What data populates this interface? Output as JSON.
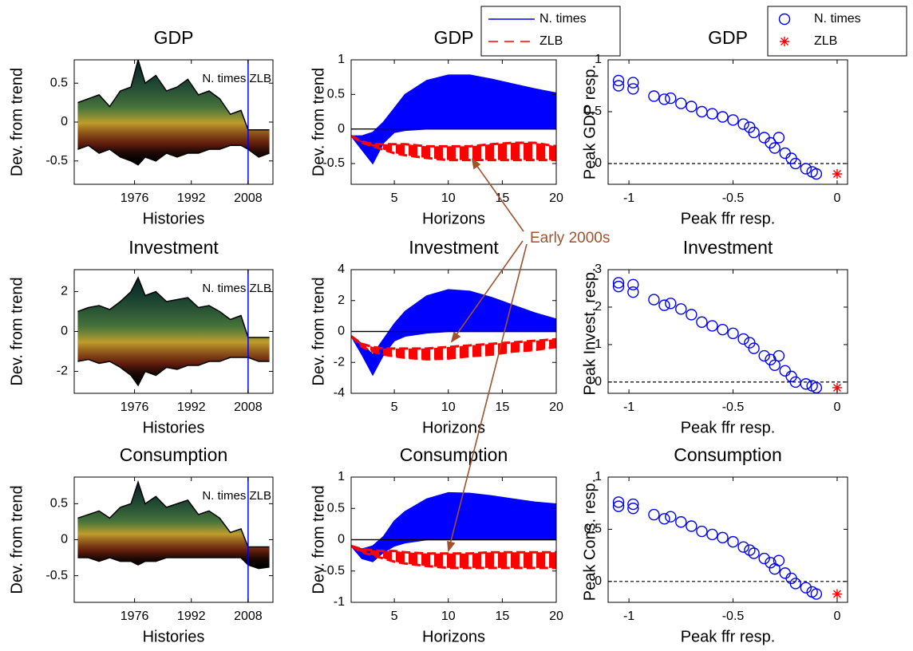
{
  "chart_data": [
    {
      "type": "area",
      "title": "GDP",
      "xlabel": "Histories",
      "ylabel": "Dev. from trend",
      "annotation": "N. times ZLB",
      "vline": 2008,
      "vline_color": "#0000ff",
      "color": "#000000",
      "x": [
        1960,
        1963,
        1966,
        1969,
        1972,
        1975,
        1977,
        1979,
        1982,
        1985,
        1988,
        1991,
        1994,
        1997,
        2000,
        2003,
        2006,
        2008,
        2011,
        2014
      ],
      "upper": [
        0.25,
        0.3,
        0.35,
        0.2,
        0.4,
        0.45,
        0.8,
        0.5,
        0.6,
        0.4,
        0.45,
        0.55,
        0.35,
        0.4,
        0.3,
        0.1,
        0.15,
        -0.1,
        -0.1,
        -0.1
      ],
      "lower": [
        -0.35,
        -0.3,
        -0.4,
        -0.35,
        -0.45,
        -0.5,
        -0.55,
        -0.45,
        -0.5,
        -0.4,
        -0.45,
        -0.4,
        -0.4,
        -0.35,
        -0.35,
        -0.3,
        -0.3,
        -0.35,
        -0.45,
        -0.4
      ],
      "xlim": [
        1959,
        2015
      ],
      "xticks": [
        1976,
        1992,
        2008
      ],
      "ylim": [
        -0.8,
        0.8
      ],
      "yticks": [
        -0.5,
        0,
        0.5
      ]
    },
    {
      "type": "area",
      "title": "GDP",
      "xlabel": "Horizons",
      "ylabel": "Dev. from trend",
      "hline": 0,
      "x": [
        1,
        2,
        3,
        4,
        5,
        6,
        8,
        10,
        12,
        14,
        16,
        18,
        20
      ],
      "series": [
        {
          "name": "N. times",
          "color": "#0000ff",
          "upper": [
            -0.1,
            -0.1,
            -0.05,
            0.1,
            0.3,
            0.5,
            0.7,
            0.78,
            0.78,
            0.72,
            0.65,
            0.58,
            0.52
          ],
          "lower": [
            -0.1,
            -0.3,
            -0.5,
            -0.2,
            -0.05,
            -0.02,
            0,
            0,
            0,
            0,
            0,
            0,
            0
          ]
        },
        {
          "name": "ZLB",
          "color": "#ff0000",
          "upper": [
            -0.1,
            -0.18,
            -0.22,
            -0.22,
            -0.22,
            -0.22,
            -0.25,
            -0.25,
            -0.25,
            -0.22,
            -0.2,
            -0.2,
            -0.25
          ],
          "lower": [
            -0.1,
            -0.2,
            -0.25,
            -0.3,
            -0.35,
            -0.38,
            -0.42,
            -0.45,
            -0.45,
            -0.45,
            -0.45,
            -0.45,
            -0.45
          ]
        }
      ],
      "xlim": [
        1,
        20
      ],
      "xticks": [
        5,
        10,
        15,
        20
      ],
      "ylim": [
        -0.8,
        1
      ],
      "yticks": [
        -0.5,
        0,
        0.5,
        1
      ]
    },
    {
      "type": "scatter",
      "title": "GDP",
      "xlabel": "Peak ffr resp.",
      "ylabel": "Peak GDP resp.",
      "hline": 0,
      "series": [
        {
          "name": "N. times",
          "color": "#0000ff",
          "marker": "circle",
          "x": [
            -1.05,
            -1.05,
            -0.98,
            -0.98,
            -0.88,
            -0.83,
            -0.8,
            -0.75,
            -0.7,
            -0.65,
            -0.6,
            -0.55,
            -0.5,
            -0.45,
            -0.42,
            -0.4,
            -0.35,
            -0.32,
            -0.3,
            -0.28,
            -0.25,
            -0.22,
            -0.2,
            -0.15,
            -0.12,
            -0.1
          ],
          "values": [
            0.8,
            0.75,
            0.78,
            0.72,
            0.65,
            0.62,
            0.63,
            0.58,
            0.55,
            0.5,
            0.48,
            0.45,
            0.42,
            0.38,
            0.35,
            0.3,
            0.25,
            0.2,
            0.15,
            0.25,
            0.1,
            0.05,
            0,
            -0.05,
            -0.08,
            -0.1
          ]
        },
        {
          "name": "ZLB",
          "color": "#ff0000",
          "marker": "star",
          "x": [
            0
          ],
          "values": [
            -0.1
          ]
        }
      ],
      "xlim": [
        -1.1,
        0.05
      ],
      "xticks": [
        -1,
        -0.5,
        0
      ],
      "ylim": [
        -0.2,
        1
      ],
      "yticks": [
        0,
        0.5,
        1
      ]
    },
    {
      "type": "area",
      "title": "Investment",
      "xlabel": "Histories",
      "ylabel": "Dev. from trend",
      "annotation": "N. times ZLB",
      "vline": 2008,
      "vline_color": "#0000ff",
      "color": "#000000",
      "x": [
        1960,
        1963,
        1966,
        1969,
        1972,
        1975,
        1977,
        1979,
        1982,
        1985,
        1988,
        1991,
        1994,
        1997,
        2000,
        2003,
        2006,
        2008,
        2011,
        2014
      ],
      "upper": [
        1,
        1.2,
        1.3,
        1.1,
        1.5,
        2,
        2.7,
        1.8,
        2,
        1.5,
        1.6,
        1.7,
        1.2,
        1.3,
        1,
        0.6,
        0.8,
        -0.3,
        -0.3,
        -0.3
      ],
      "lower": [
        -1.5,
        -1.4,
        -1.6,
        -1.5,
        -1.8,
        -2.2,
        -2.7,
        -2,
        -2.2,
        -1.8,
        -1.9,
        -1.7,
        -1.7,
        -1.5,
        -1.5,
        -1.3,
        -1.3,
        -1.3,
        -1.5,
        -1.5
      ],
      "xlim": [
        1959,
        2015
      ],
      "xticks": [
        1976,
        1992,
        2008
      ],
      "ylim": [
        -3.1,
        3.1
      ],
      "yticks": [
        -2,
        0,
        2
      ]
    },
    {
      "type": "area",
      "title": "Investment",
      "xlabel": "Horizons",
      "ylabel": "Dev. from trend",
      "hline": 0,
      "x": [
        1,
        2,
        3,
        4,
        5,
        6,
        8,
        10,
        12,
        14,
        16,
        18,
        20
      ],
      "series": [
        {
          "color": "#0000ff",
          "upper": [
            -0.3,
            -0.8,
            -1.5,
            -0.5,
            0.5,
            1.3,
            2.3,
            2.7,
            2.6,
            2.2,
            1.7,
            1.2,
            0.8
          ],
          "lower": [
            -0.3,
            -1.5,
            -2.8,
            -1.5,
            -0.6,
            -0.3,
            -0.1,
            0,
            0,
            0,
            0,
            0,
            0
          ]
        },
        {
          "color": "#ff0000",
          "upper": [
            -0.3,
            -0.8,
            -1,
            -1.1,
            -1.1,
            -1.1,
            -1.1,
            -1,
            -0.9,
            -0.8,
            -0.7,
            -0.6,
            -0.5
          ],
          "lower": [
            -0.3,
            -1,
            -1.3,
            -1.5,
            -1.6,
            -1.7,
            -1.8,
            -1.75,
            -1.6,
            -1.5,
            -1.3,
            -1.2,
            -1
          ]
        }
      ],
      "xlim": [
        1,
        20
      ],
      "xticks": [
        5,
        10,
        15,
        20
      ],
      "ylim": [
        -4,
        4
      ],
      "yticks": [
        -4,
        -2,
        0,
        2,
        4
      ]
    },
    {
      "type": "scatter",
      "title": "Investment",
      "xlabel": "Peak ffr resp.",
      "ylabel": "Peak Invest. resp.",
      "hline": 0,
      "series": [
        {
          "color": "#0000ff",
          "marker": "circle",
          "x": [
            -1.05,
            -1.05,
            -0.98,
            -0.98,
            -0.88,
            -0.83,
            -0.8,
            -0.75,
            -0.7,
            -0.65,
            -0.6,
            -0.55,
            -0.5,
            -0.45,
            -0.42,
            -0.4,
            -0.35,
            -0.32,
            -0.3,
            -0.28,
            -0.25,
            -0.22,
            -0.2,
            -0.15,
            -0.12,
            -0.1
          ],
          "values": [
            2.65,
            2.55,
            2.6,
            2.4,
            2.2,
            2.05,
            2.1,
            1.95,
            1.8,
            1.6,
            1.5,
            1.4,
            1.3,
            1.15,
            1.05,
            0.9,
            0.7,
            0.6,
            0.45,
            0.7,
            0.3,
            0.15,
            0,
            -0.05,
            -0.1,
            -0.15
          ]
        },
        {
          "color": "#ff0000",
          "marker": "star",
          "x": [
            0
          ],
          "values": [
            -0.15
          ]
        }
      ],
      "xlim": [
        -1.1,
        0.05
      ],
      "xticks": [
        -1,
        -0.5,
        0
      ],
      "ylim": [
        -0.3,
        3
      ],
      "yticks": [
        0,
        1,
        2,
        3
      ]
    },
    {
      "type": "area",
      "title": "Consumption",
      "xlabel": "Histories",
      "ylabel": "Dev. from trend",
      "annotation": "N. times ZLB",
      "vline": 2008,
      "vline_color": "#0000ff",
      "color": "#000000",
      "x": [
        1960,
        1963,
        1966,
        1969,
        1972,
        1975,
        1977,
        1979,
        1982,
        1985,
        1988,
        1991,
        1994,
        1997,
        2000,
        2003,
        2006,
        2008,
        2011,
        2014
      ],
      "upper": [
        0.3,
        0.35,
        0.4,
        0.3,
        0.45,
        0.5,
        0.8,
        0.5,
        0.6,
        0.45,
        0.5,
        0.55,
        0.35,
        0.4,
        0.3,
        0.1,
        0.15,
        -0.1,
        -0.1,
        -0.1
      ],
      "lower": [
        -0.25,
        -0.25,
        -0.3,
        -0.25,
        -0.3,
        -0.3,
        -0.35,
        -0.3,
        -0.3,
        -0.25,
        -0.25,
        -0.25,
        -0.25,
        -0.25,
        -0.25,
        -0.25,
        -0.25,
        -0.35,
        -0.4,
        -0.38
      ],
      "xlim": [
        1959,
        2015
      ],
      "xticks": [
        1976,
        1992,
        2008
      ],
      "ylim": [
        -0.87,
        0.87
      ],
      "yticks": [
        -0.5,
        0,
        0.5
      ]
    },
    {
      "type": "area",
      "title": "Consumption",
      "xlabel": "Horizons",
      "ylabel": "Dev. from trend",
      "hline": 0,
      "x": [
        1,
        2,
        3,
        4,
        5,
        6,
        8,
        10,
        12,
        14,
        16,
        18,
        20
      ],
      "series": [
        {
          "color": "#0000ff",
          "upper": [
            -0.1,
            -0.15,
            -0.1,
            0.05,
            0.3,
            0.45,
            0.65,
            0.75,
            0.74,
            0.7,
            0.65,
            0.6,
            0.57
          ],
          "lower": [
            -0.1,
            -0.3,
            -0.35,
            -0.2,
            -0.1,
            -0.05,
            0,
            0,
            0,
            0,
            0,
            0,
            0
          ]
        },
        {
          "color": "#ff0000",
          "upper": [
            -0.1,
            -0.15,
            -0.17,
            -0.18,
            -0.18,
            -0.2,
            -0.22,
            -0.22,
            -0.22,
            -0.2,
            -0.2,
            -0.2,
            -0.2
          ],
          "lower": [
            -0.1,
            -0.2,
            -0.25,
            -0.3,
            -0.35,
            -0.38,
            -0.42,
            -0.45,
            -0.45,
            -0.45,
            -0.45,
            -0.45,
            -0.45
          ]
        }
      ],
      "xlim": [
        1,
        20
      ],
      "xticks": [
        5,
        10,
        15,
        20
      ],
      "ylim": [
        -1,
        1
      ],
      "yticks": [
        -1,
        -0.5,
        0,
        0.5,
        1
      ]
    },
    {
      "type": "scatter",
      "title": "Consumption",
      "xlabel": "Peak ffr resp.",
      "ylabel": "Peak Cons. resp.",
      "hline": 0,
      "series": [
        {
          "color": "#0000ff",
          "marker": "circle",
          "x": [
            -1.05,
            -1.05,
            -0.98,
            -0.98,
            -0.88,
            -0.83,
            -0.8,
            -0.75,
            -0.7,
            -0.65,
            -0.6,
            -0.55,
            -0.5,
            -0.45,
            -0.42,
            -0.4,
            -0.35,
            -0.32,
            -0.3,
            -0.28,
            -0.25,
            -0.22,
            -0.2,
            -0.15,
            -0.12,
            -0.1
          ],
          "values": [
            0.76,
            0.72,
            0.74,
            0.7,
            0.64,
            0.6,
            0.62,
            0.57,
            0.53,
            0.48,
            0.45,
            0.42,
            0.38,
            0.33,
            0.3,
            0.27,
            0.22,
            0.18,
            0.12,
            0.2,
            0.08,
            0.03,
            -0.02,
            -0.06,
            -0.1,
            -0.12
          ]
        },
        {
          "color": "#ff0000",
          "marker": "star",
          "x": [
            0
          ],
          "values": [
            -0.12
          ]
        }
      ],
      "xlim": [
        -1.1,
        0.05
      ],
      "xticks": [
        -1,
        -0.5,
        0
      ],
      "ylim": [
        -0.2,
        1
      ],
      "yticks": [
        0,
        0.5,
        1
      ]
    }
  ],
  "annotation": "Early 2000s"
}
